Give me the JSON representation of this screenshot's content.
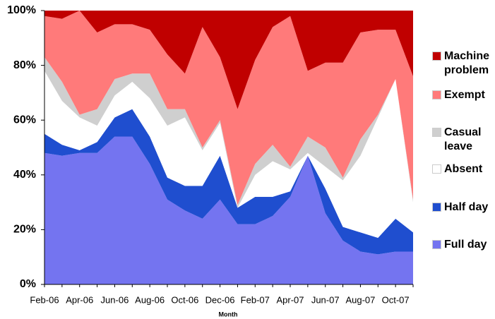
{
  "chart_data": {
    "type": "stacked_area_percent",
    "x_label": "Month",
    "categories": [
      "Feb-06",
      null,
      "Apr-06",
      null,
      "Jun-06",
      null,
      "Aug-06",
      null,
      "Oct-06",
      null,
      "Dec-06",
      null,
      "Feb-07",
      null,
      "Apr-07",
      null,
      "Jun-07",
      null,
      "Aug-07",
      null,
      "Oct-07",
      null
    ],
    "series": [
      {
        "name": "Full day",
        "color": "#7474f0",
        "values": [
          48,
          47,
          48,
          48,
          54,
          54,
          44,
          31,
          27,
          24,
          31,
          22,
          22,
          25,
          32,
          47,
          26,
          16,
          12,
          11,
          12,
          12
        ]
      },
      {
        "name": "Half day",
        "color": "#1f4ecf",
        "values": [
          7,
          4,
          1,
          4,
          7,
          10,
          10,
          8,
          9,
          12,
          16,
          6,
          10,
          7,
          2,
          0,
          9,
          5,
          7,
          6,
          12,
          7
        ]
      },
      {
        "name": "Absent",
        "color": "#ffffff",
        "values": [
          23,
          16,
          12,
          6,
          8,
          10,
          14,
          19,
          25,
          13,
          12,
          0,
          8,
          13,
          8,
          1,
          8,
          17,
          28,
          44,
          51,
          11
        ]
      },
      {
        "name": "Casual leave",
        "color": "#cfcfcf",
        "values": [
          5,
          7,
          1,
          6,
          6,
          3,
          9,
          6,
          3,
          1,
          1,
          1,
          4,
          6,
          1,
          6,
          7,
          1,
          6,
          1,
          0,
          1
        ]
      },
      {
        "name": "Exempt",
        "color": "#ff7a7a",
        "values": [
          15,
          23,
          38,
          28,
          20,
          18,
          16,
          20,
          13,
          44,
          23,
          35,
          38,
          43,
          55,
          24,
          31,
          42,
          39,
          31,
          18,
          45
        ]
      },
      {
        "name": "Machine problem",
        "color": "#c00000",
        "values": [
          2,
          3,
          0,
          8,
          5,
          5,
          7,
          16,
          23,
          6,
          17,
          36,
          18,
          6,
          2,
          22,
          19,
          19,
          8,
          7,
          7,
          24
        ]
      }
    ],
    "ylim": [
      0,
      100
    ],
    "yticks": [
      {
        "value": 0,
        "label": "0%"
      },
      {
        "value": 20,
        "label": "20%"
      },
      {
        "value": 40,
        "label": "40%"
      },
      {
        "value": 60,
        "label": "60%"
      },
      {
        "value": 80,
        "label": "80%"
      },
      {
        "value": 100,
        "label": "100%"
      }
    ],
    "legend": "right"
  }
}
